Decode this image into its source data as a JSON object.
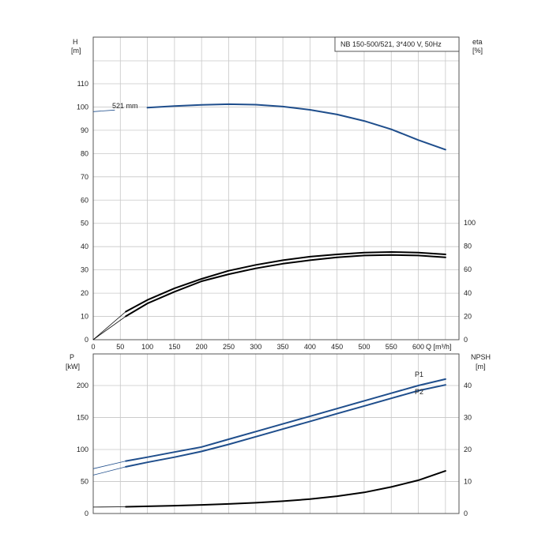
{
  "chart_data": [
    {
      "type": "line",
      "title": "NB 150-500/521, 3*400 V, 50Hz",
      "left_axis": {
        "label_top": "H",
        "label_unit": "[m]",
        "ylim": [
          0,
          120
        ],
        "ticks": [
          0,
          10,
          20,
          30,
          40,
          50,
          60,
          70,
          80,
          90,
          100,
          110
        ]
      },
      "right_axis": {
        "label_top": "eta",
        "label_unit": "[%]",
        "ylim": [
          0,
          240
        ],
        "ticks": [
          0,
          20,
          40,
          60,
          80,
          100
        ]
      },
      "x_axis": {
        "label": "Q [m³/h]",
        "xlim": [
          0,
          675
        ],
        "ticks": [
          0,
          50,
          100,
          150,
          200,
          250,
          300,
          350,
          400,
          450,
          500,
          550,
          600
        ]
      },
      "grid": true,
      "annotation": "521 mm",
      "series": [
        {
          "name": "",
          "axis": "left",
          "color": "#1f4e8c",
          "x": [
            0,
            40,
            100,
            150,
            200,
            250,
            300,
            350,
            400,
            450,
            500,
            550,
            600,
            650
          ],
          "y": [
            98,
            98.7,
            99.7,
            100.4,
            100.9,
            101.2,
            101,
            100.2,
            98.8,
            96.8,
            94,
            90.4,
            85.8,
            81.7
          ]
        },
        {
          "name": "",
          "axis": "right",
          "color": "#000000",
          "x": [
            0,
            60,
            100,
            150,
            200,
            250,
            300,
            350,
            400,
            450,
            500,
            550,
            600,
            650
          ],
          "y": [
            0,
            24,
            34,
            44,
            52,
            59,
            64,
            68,
            71,
            73,
            74.5,
            75,
            74.5,
            73
          ]
        },
        {
          "name": "",
          "axis": "right",
          "color": "#000000",
          "x": [
            0,
            60,
            100,
            150,
            200,
            250,
            300,
            350,
            400,
            450,
            500,
            550,
            600,
            650
          ],
          "y": [
            0,
            20,
            31,
            41,
            50,
            56,
            61,
            65,
            68,
            70.5,
            72,
            72.5,
            72,
            70.5
          ]
        }
      ]
    },
    {
      "type": "line",
      "left_axis": {
        "label_top": "P",
        "label_unit": "[kW]",
        "ylim": [
          0,
          250
        ],
        "ticks": [
          0,
          50,
          100,
          150,
          200
        ]
      },
      "right_axis": {
        "label_top": "NPSH",
        "label_unit": "[m]",
        "ylim": [
          0,
          50
        ],
        "ticks": [
          0,
          10,
          20,
          30,
          40
        ]
      },
      "x_axis": {
        "xlim": [
          0,
          675
        ]
      },
      "grid": true,
      "series": [
        {
          "name": "P1",
          "axis": "left",
          "color": "#1f4e8c",
          "x": [
            0,
            60,
            100,
            150,
            200,
            250,
            300,
            350,
            400,
            450,
            500,
            550,
            600,
            650
          ],
          "y": [
            70,
            82,
            88,
            96,
            104,
            116,
            128,
            140,
            152,
            164,
            176,
            188,
            200,
            210
          ]
        },
        {
          "name": "P2",
          "axis": "left",
          "color": "#1f4e8c",
          "x": [
            0,
            60,
            100,
            150,
            200,
            250,
            300,
            350,
            400,
            450,
            500,
            550,
            600,
            650
          ],
          "y": [
            60,
            73,
            80,
            88,
            97,
            108,
            120,
            132,
            144,
            156,
            168,
            180,
            192,
            201
          ]
        },
        {
          "name": "",
          "axis": "right",
          "color": "#000000",
          "x": [
            0,
            60,
            100,
            150,
            200,
            250,
            300,
            350,
            400,
            450,
            500,
            550,
            600,
            650
          ],
          "y": [
            2,
            2.1,
            2.25,
            2.45,
            2.7,
            3.0,
            3.35,
            3.85,
            4.5,
            5.4,
            6.6,
            8.3,
            10.4,
            13.3
          ]
        }
      ]
    }
  ]
}
